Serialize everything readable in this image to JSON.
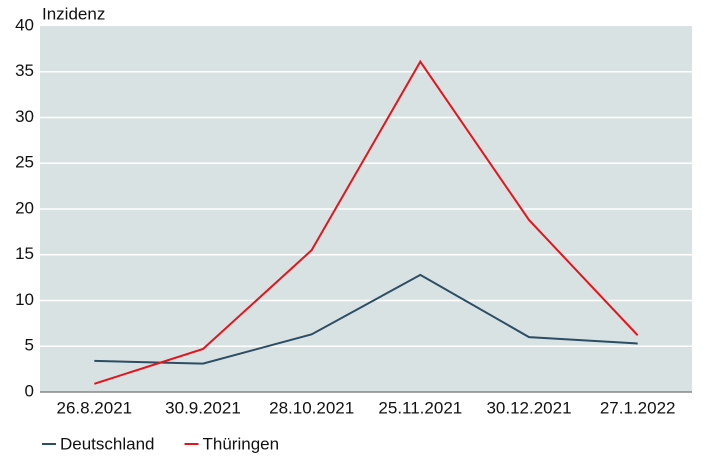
{
  "chart_data": {
    "type": "line",
    "y_label": "Inzidenz",
    "categories": [
      "26.8.2021",
      "30.9.2021",
      "28.10.2021",
      "25.11.2021",
      "30.12.2021",
      "27.1.2022"
    ],
    "series": [
      {
        "name": "Deutschland",
        "color": "#2b4e64",
        "values": [
          3.4,
          3.1,
          6.3,
          12.8,
          6.0,
          5.3
        ]
      },
      {
        "name": "Thüringen",
        "color": "#e3141c",
        "values": [
          0.9,
          4.7,
          15.5,
          36.1,
          18.8,
          6.2
        ]
      }
    ],
    "ylim": [
      0,
      40
    ],
    "yticks": [
      0,
      5,
      10,
      15,
      20,
      25,
      30,
      35,
      40
    ],
    "grid": true
  }
}
